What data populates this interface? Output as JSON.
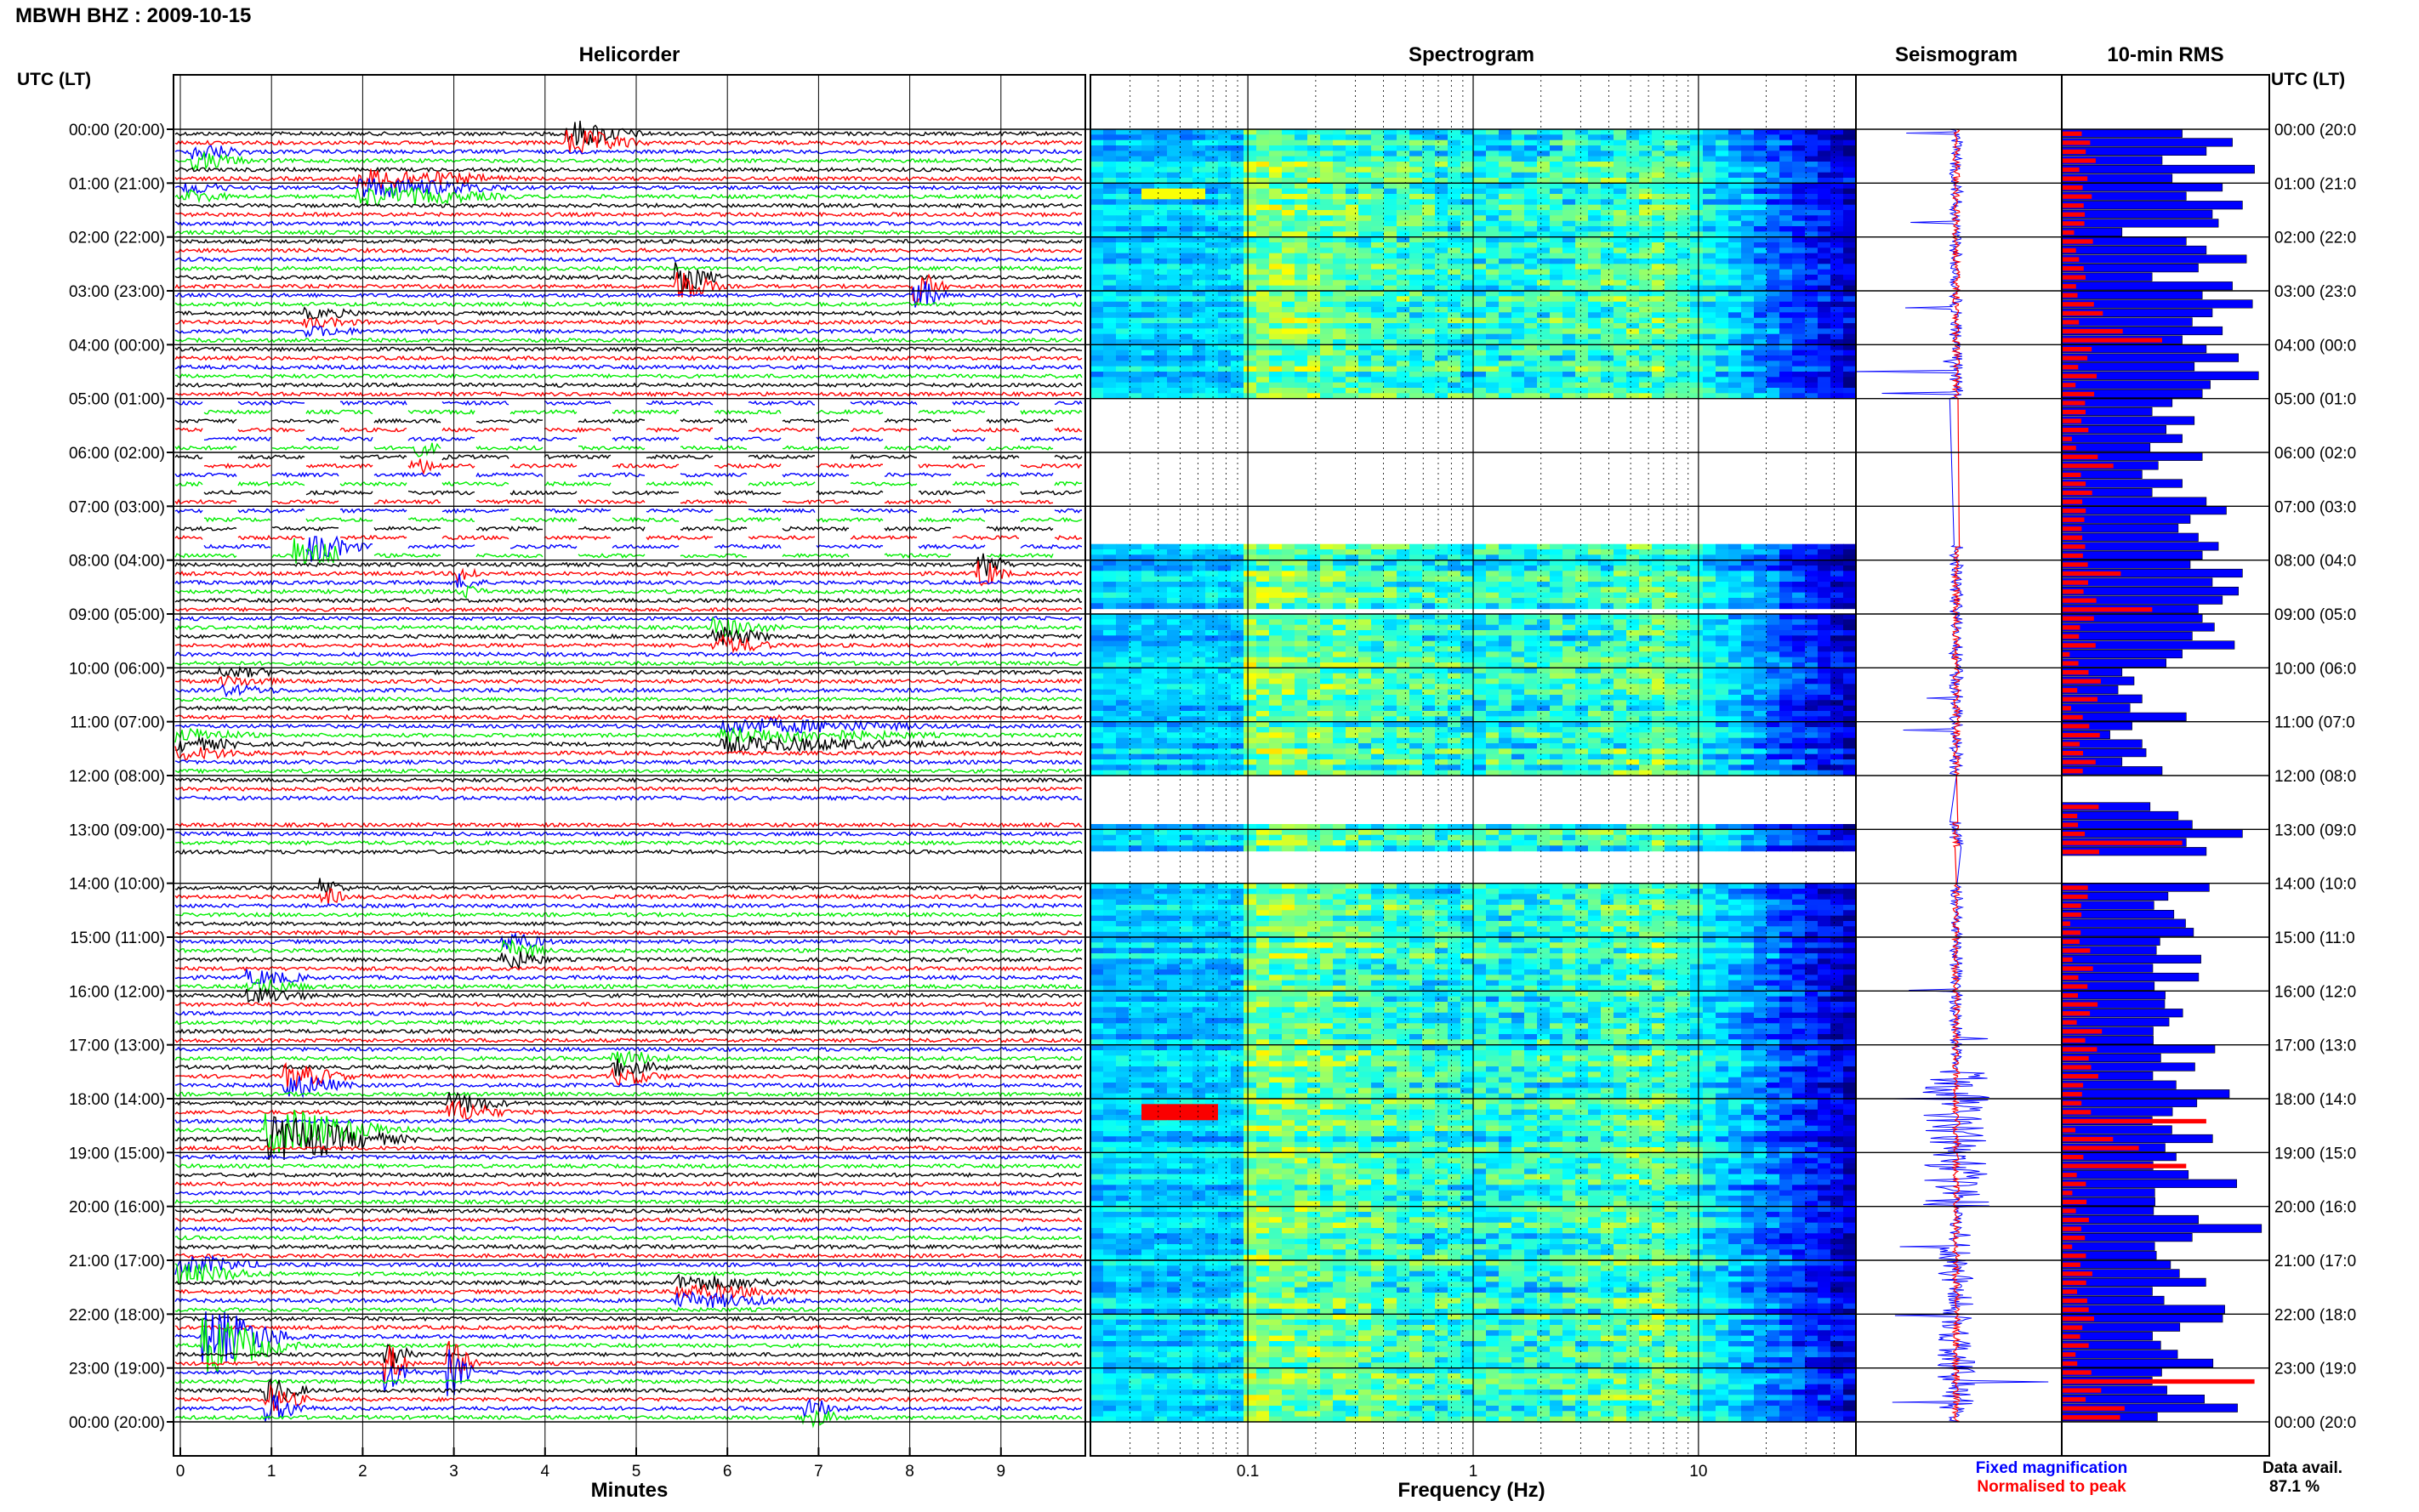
{
  "page": {
    "title": "MBWH BHZ : 2009-10-15",
    "left_axis_label": "UTC (LT)",
    "right_axis_label": "UTC (LT)"
  },
  "panels": {
    "helicorder": "Helicorder",
    "spectrogram": "Spectrogram",
    "seismogram": "Seismogram",
    "rms": "10-min RMS"
  },
  "time_labels": [
    "00:00 (20:00)",
    "01:00 (21:00)",
    "02:00 (22:00)",
    "03:00 (23:00)",
    "04:00 (00:00)",
    "05:00 (01:00)",
    "06:00 (02:00)",
    "07:00 (03:00)",
    "08:00 (04:00)",
    "09:00 (05:00)",
    "10:00 (06:00)",
    "11:00 (07:00)",
    "12:00 (08:00)",
    "13:00 (09:00)",
    "14:00 (10:00)",
    "15:00 (11:00)",
    "16:00 (12:00)",
    "17:00 (13:00)",
    "18:00 (14:00)",
    "19:00 (15:00)",
    "20:00 (16:00)",
    "21:00 (17:00)",
    "22:00 (18:00)",
    "23:00 (19:00)",
    "00:00 (20:00)"
  ],
  "right_time_labels": [
    "00:00 (20:0",
    "01:00 (21:0",
    "02:00 (22:0",
    "03:00 (23:0",
    "04:00 (00:0",
    "05:00 (01:0",
    "06:00 (02:0",
    "07:00 (03:0",
    "08:00 (04:0",
    "09:00 (05:0",
    "10:00 (06:0",
    "11:00 (07:0",
    "12:00 (08:0",
    "13:00 (09:0",
    "14:00 (10:0",
    "15:00 (11:0",
    "16:00 (12:0",
    "17:00 (13:0",
    "18:00 (14:0",
    "19:00 (15:0",
    "20:00 (16:0",
    "21:00 (17:0",
    "22:00 (18:0",
    "23:00 (19:0",
    "00:00 (20:0"
  ],
  "footer": {
    "minutes_label": "Minutes",
    "frequency_label": "Frequency (Hz)",
    "fixed_magnification": "Fixed magnification",
    "normalised_to_peak": "Normalised to peak",
    "data_avail_label": "Data avail.",
    "data_avail_value": "87.1 %"
  },
  "colors": {
    "trace_black": "#000000",
    "trace_red": "#ff0000",
    "trace_blue": "#0000ff",
    "trace_green": "#00ee00",
    "fixed_magnification": "#0000ff",
    "normalised_to_peak": "#ff0000"
  },
  "chart_data": [
    {
      "type": "line",
      "name": "Helicorder",
      "x_axis": {
        "label": "Minutes",
        "range": [
          0,
          10
        ],
        "ticks": [
          "0",
          "1",
          "2",
          "3",
          "4",
          "5",
          "6",
          "7",
          "8",
          "9"
        ]
      },
      "y_axis": {
        "label": "UTC (LT)",
        "range_hours": [
          0,
          24
        ],
        "rows_per_hour": 6
      },
      "trace_color_cycle": [
        "black",
        "red",
        "blue",
        "green"
      ],
      "data_gaps_hours": [
        [
          12.2,
          12.8
        ],
        [
          13.4,
          13.9
        ]
      ]
    },
    {
      "type": "heatmap",
      "name": "Spectrogram",
      "x_axis": {
        "label": "Frequency (Hz)",
        "scale": "log",
        "range": [
          0.02,
          50
        ],
        "ticks": [
          "0.1",
          "1",
          "10"
        ]
      },
      "y_axis": {
        "range_hours": [
          0,
          24
        ]
      },
      "colormap": "jet",
      "data_gaps_hours": [
        [
          5.0,
          7.7
        ],
        [
          8.8,
          9.0
        ],
        [
          12.0,
          12.85
        ],
        [
          13.35,
          14.0
        ]
      ]
    },
    {
      "type": "line",
      "name": "Seismogram",
      "y_axis": {
        "range_hours": [
          0,
          24
        ]
      },
      "series": [
        {
          "name": "Fixed magnification"
        },
        {
          "name": "Normalised to peak"
        }
      ]
    },
    {
      "type": "bar",
      "name": "10-min RMS",
      "orientation": "horizontal",
      "bin_minutes": 10,
      "y_axis": {
        "range_hours": [
          0,
          24
        ]
      },
      "series": [
        {
          "name": "Fixed magnification",
          "color": "#0000ff",
          "values": [
            0.6,
            0.85,
            0.72,
            0.5,
            0.96,
            0.55,
            0.8,
            0.62,
            0.9,
            0.75,
            0.78,
            0.3,
            0.62,
            0.72,
            0.92,
            0.68,
            0.45,
            0.85,
            0.7,
            0.95,
            0.75,
            0.65,
            0.8,
            0.6,
            0.72,
            0.88,
            0.66,
            0.98,
            0.74,
            0.7,
            0.55,
            0.45,
            0.66,
            0.52,
            0.6,
            0.44,
            0.7,
            0.48,
            0.4,
            0.6,
            0.45,
            0.72,
            0.82,
            0.64,
            0.58,
            0.68,
            0.78,
            0.7,
            0.64,
            0.9,
            0.75,
            0.88,
            0.8,
            0.68,
            0.7,
            0.76,
            0.65,
            0.86,
            0.6,
            0.52,
            0.3,
            0.36,
            0.28,
            0.4,
            0.34,
            0.62,
            0.35,
            0.24,
            0.4,
            0.42,
            0.3,
            0.5,
            0.9,
            0.78,
            0.62,
            0.44,
            0.58,
            0.65,
            0.9,
            0.62,
            0.72,
            0
          ],
          "note": "relative RMS per 10-minute bin; values approximate (first 14 hours shown)"
        },
        {
          "name": "Normalised to peak",
          "color": "#ff0000",
          "values": [
            0.1,
            0.15,
            0.08,
            0.12,
            0.06,
            0.1,
            0.12,
            0.2,
            0.1,
            0.08,
            0.14,
            0.1,
            0.18,
            0.09,
            0.12,
            0.15,
            0.08,
            0.1,
            0.12,
            0.2,
            0.14,
            0.08,
            0.25,
            0.35,
            0.12,
            0.1,
            0.08,
            0.15,
            0.06,
            0.12
          ]
        }
      ]
    }
  ]
}
